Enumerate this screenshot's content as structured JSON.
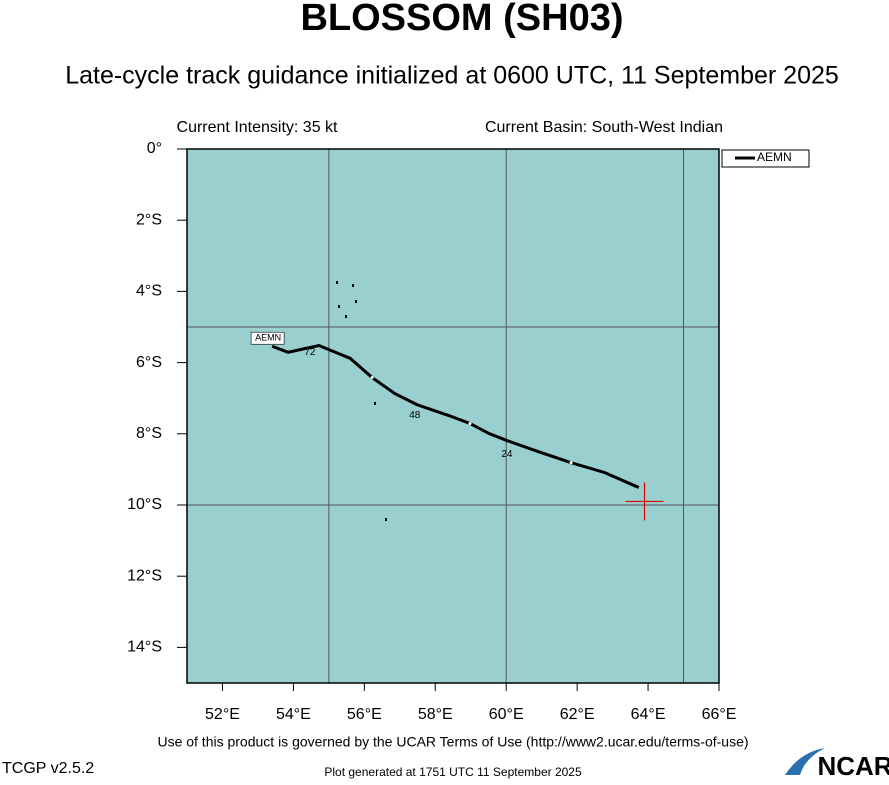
{
  "chart_data": {
    "type": "line",
    "title": "BLOSSOM (SH03)",
    "subtitle": "Late-cycle track guidance initialized at 0600 UTC, 11 September 2025",
    "intensity": "Current Intensity: 35 kt",
    "basin": "Current Basin: South-West Indian",
    "xlim": [
      51,
      66
    ],
    "ylim": [
      -15,
      0
    ],
    "xticks": [
      {
        "value": 52,
        "label": "52°E"
      },
      {
        "value": 54,
        "label": "54°E"
      },
      {
        "value": 56,
        "label": "56°E"
      },
      {
        "value": 58,
        "label": "58°E"
      },
      {
        "value": 60,
        "label": "60°E"
      },
      {
        "value": 62,
        "label": "62°E"
      },
      {
        "value": 64,
        "label": "64°E"
      },
      {
        "value": 66,
        "label": "66°E"
      }
    ],
    "yticks": [
      {
        "value": 0,
        "label": "0°"
      },
      {
        "value": -2,
        "label": "2°S"
      },
      {
        "value": -4,
        "label": "4°S"
      },
      {
        "value": -6,
        "label": "6°S"
      },
      {
        "value": -8,
        "label": "8°S"
      },
      {
        "value": -10,
        "label": "10°S"
      },
      {
        "value": -12,
        "label": "12°S"
      },
      {
        "value": -14,
        "label": "14°S"
      }
    ],
    "xgrid": [
      55,
      60,
      65
    ],
    "ygrid": [
      -5,
      -10
    ],
    "background": "#99cfcf",
    "series": [
      {
        "name": "AEMN",
        "color": "#000000",
        "x": [
          63.74,
          62.78,
          61.83,
          60.9,
          60.02,
          59.51,
          58.98,
          58.39,
          57.48,
          56.86,
          56.22,
          55.6,
          54.72,
          53.85,
          53.4
        ],
        "values": [
          -9.51,
          -9.09,
          -8.81,
          -8.5,
          -8.19,
          -7.99,
          -7.71,
          -7.49,
          -7.18,
          -6.87,
          -6.42,
          -5.88,
          -5.52,
          -5.71,
          -5.54
        ]
      }
    ],
    "hour_labels": [
      "24",
      "48",
      "72"
    ],
    "current_position": {
      "x": 63.9,
      "y": -9.9,
      "color": "#e00000"
    },
    "terms": "Use of this product is governed by the UCAR Terms of Use (http://www2.ucar.edu/terms-of-use)",
    "version": "TCGP v2.5.2",
    "generated": "Plot generated at 1751 UTC  11 September 2025",
    "logo": "NCAR"
  }
}
